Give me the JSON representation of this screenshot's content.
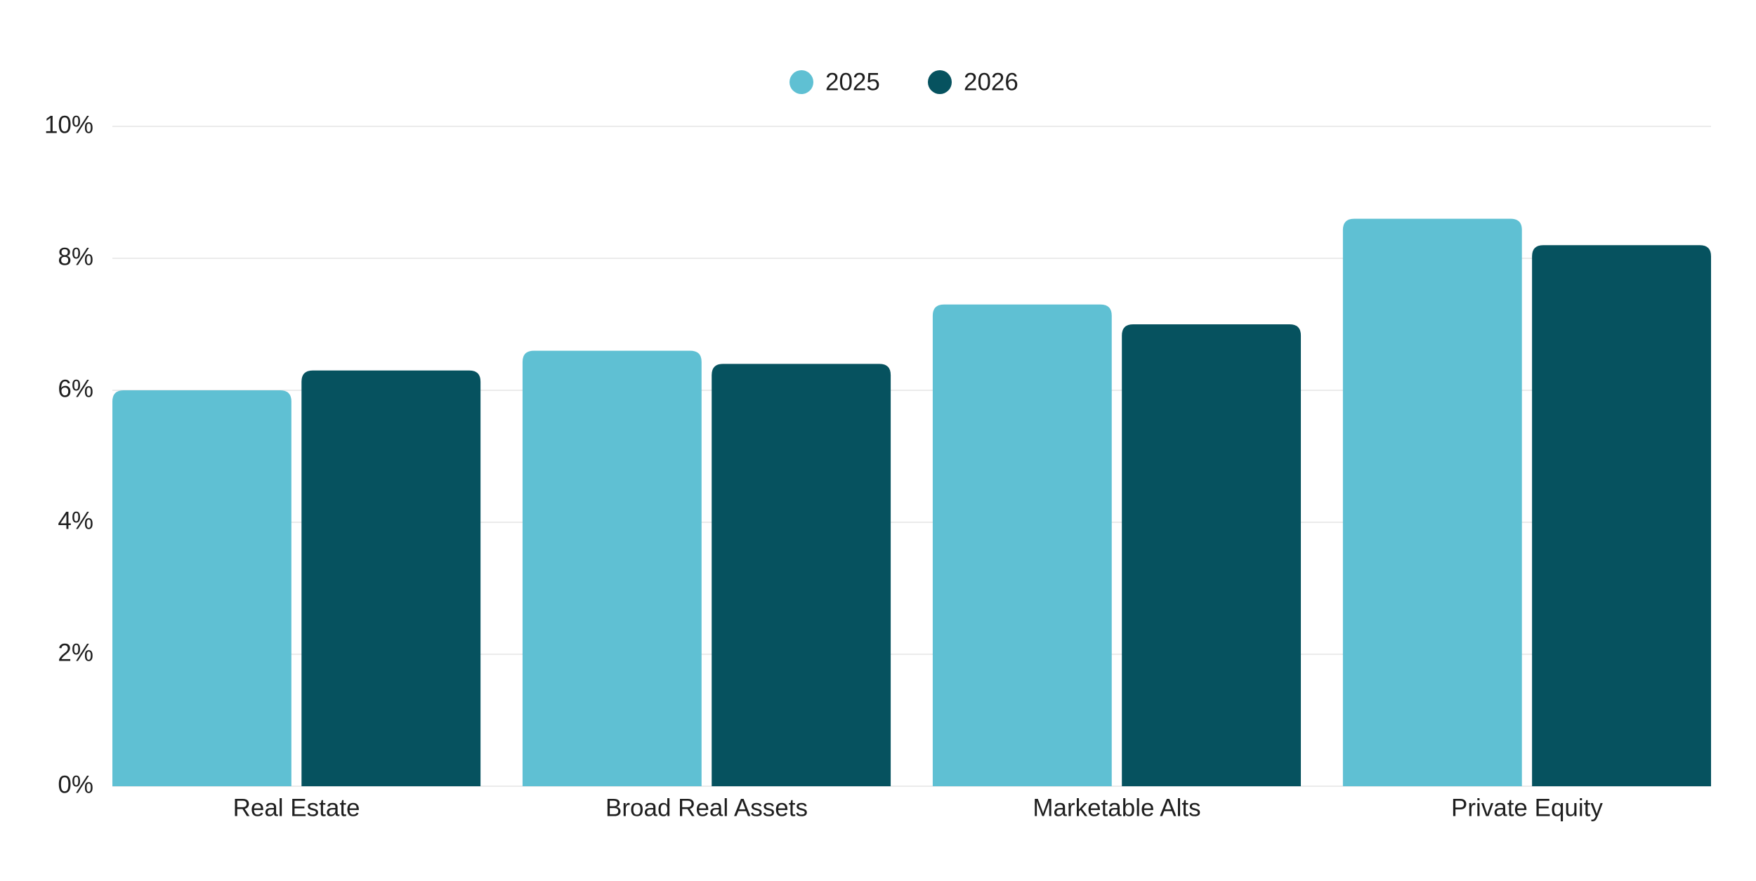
{
  "chart_data": {
    "type": "bar",
    "categories": [
      "Real Estate",
      "Broad Real Assets",
      "Marketable Alts",
      "Private Equity"
    ],
    "series": [
      {
        "name": "2025",
        "color": "#5fc0d3",
        "values": [
          6.0,
          6.6,
          7.3,
          8.6
        ]
      },
      {
        "name": "2026",
        "color": "#06525f",
        "values": [
          6.3,
          6.4,
          7.0,
          8.2
        ]
      }
    ],
    "ylim": [
      0,
      10
    ],
    "yticks": [
      {
        "value": 0,
        "label": "0%"
      },
      {
        "value": 2,
        "label": "2%"
      },
      {
        "value": 4,
        "label": "4%"
      },
      {
        "value": 6,
        "label": "6%"
      },
      {
        "value": 8,
        "label": "8%"
      },
      {
        "value": 10,
        "label": "10%"
      }
    ],
    "grid": true,
    "legend": "top"
  }
}
